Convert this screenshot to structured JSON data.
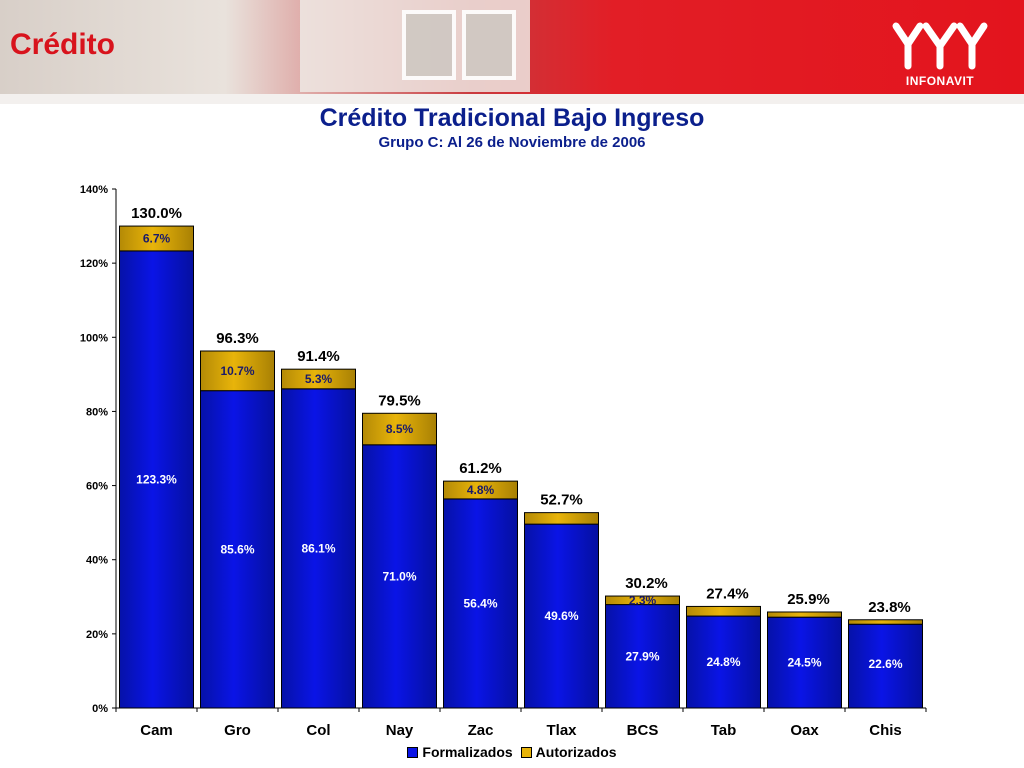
{
  "header": {
    "title": "Crédito",
    "logo_text": "INFONAVIT"
  },
  "colors": {
    "formalizados": "#0a14e6",
    "autorizados": "#e8b40a",
    "title": "#0b1f8c",
    "brand_red": "#d8131c"
  },
  "chart_data": {
    "type": "bar",
    "stacked": true,
    "title": "Crédito Tradicional Bajo Ingreso",
    "subtitle": "Grupo C: Al 26 de Noviembre de 2006",
    "categories": [
      "Cam",
      "Gro",
      "Col",
      "Nay",
      "Zac",
      "Tlax",
      "BCS",
      "Tab",
      "Oax",
      "Chis"
    ],
    "series": [
      {
        "name": "Formalizados",
        "values": [
          123.3,
          85.6,
          86.1,
          71.0,
          56.4,
          49.6,
          27.9,
          24.8,
          24.5,
          22.6
        ],
        "labels": [
          "123.3%",
          "85.6%",
          "86.1%",
          "71.0%",
          "56.4%",
          "49.6%",
          "27.9%",
          "24.8%",
          "24.5%",
          "22.6%"
        ]
      },
      {
        "name": "Autorizados",
        "values": [
          6.7,
          10.7,
          5.3,
          8.5,
          4.8,
          3.1,
          2.3,
          2.6,
          1.4,
          1.2
        ],
        "labels": [
          "6.7%",
          "10.7%",
          "5.3%",
          "8.5%",
          "4.8%",
          "",
          "2.3%",
          "",
          "",
          ""
        ]
      }
    ],
    "totals": [
      "130.0%",
      "96.3%",
      "91.4%",
      "79.5%",
      "61.2%",
      "52.7%",
      "30.2%",
      "27.4%",
      "25.9%",
      "23.8%"
    ],
    "yticks": [
      "0%",
      "20%",
      "40%",
      "60%",
      "80%",
      "100%",
      "120%",
      "140%"
    ],
    "ylim": [
      0,
      140
    ],
    "legend_position": "bottom",
    "grid": false
  }
}
